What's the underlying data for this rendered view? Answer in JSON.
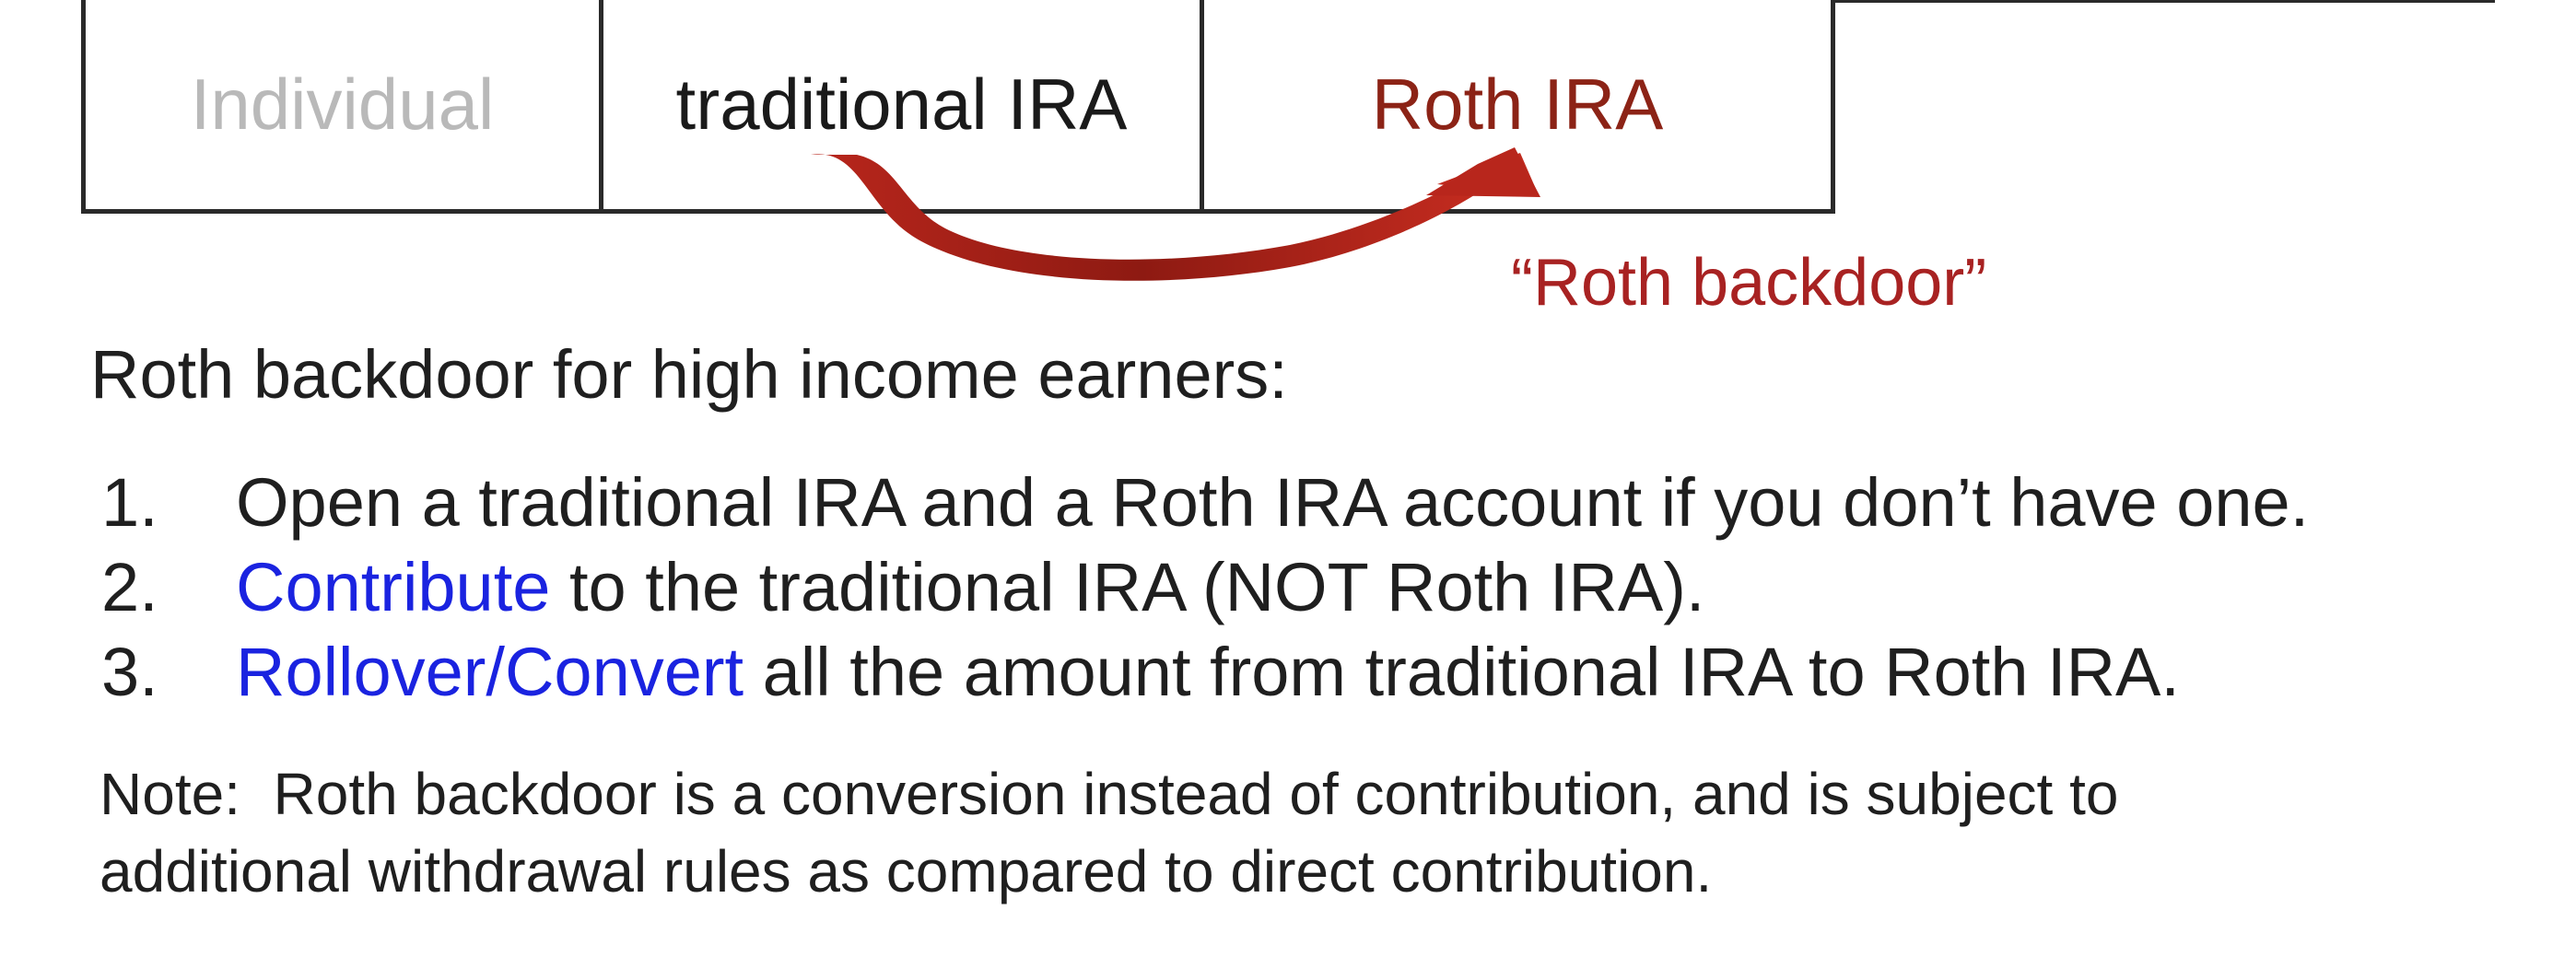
{
  "accounts": {
    "individual": "Individual",
    "traditional": "traditional IRA",
    "roth": "Roth IRA"
  },
  "arrow_label": "“Roth backdoor”",
  "heading": "Roth backdoor for high income earners:",
  "steps": [
    {
      "num": "1.",
      "link": "",
      "text": "Open a traditional IRA and a Roth IRA account if you don’t have one."
    },
    {
      "num": "2.",
      "link": "Contribute",
      "text": " to the traditional IRA (NOT Roth IRA)."
    },
    {
      "num": "3.",
      "link": "Rollover/Convert",
      "text": " all the amount from traditional IRA to Roth IRA."
    }
  ],
  "note": {
    "line1": "Note:  Roth backdoor is a conversion instead of contribution, and is subject to",
    "line2": "additional withdrawal rules as compared to direct contribution."
  },
  "colors": {
    "arrow": "#a82222",
    "link": "#1a23e0",
    "roth_text": "#8c2316",
    "individual_text": "#b9b9b9"
  },
  "icons": {
    "arrow": "curved-arrow-icon"
  }
}
